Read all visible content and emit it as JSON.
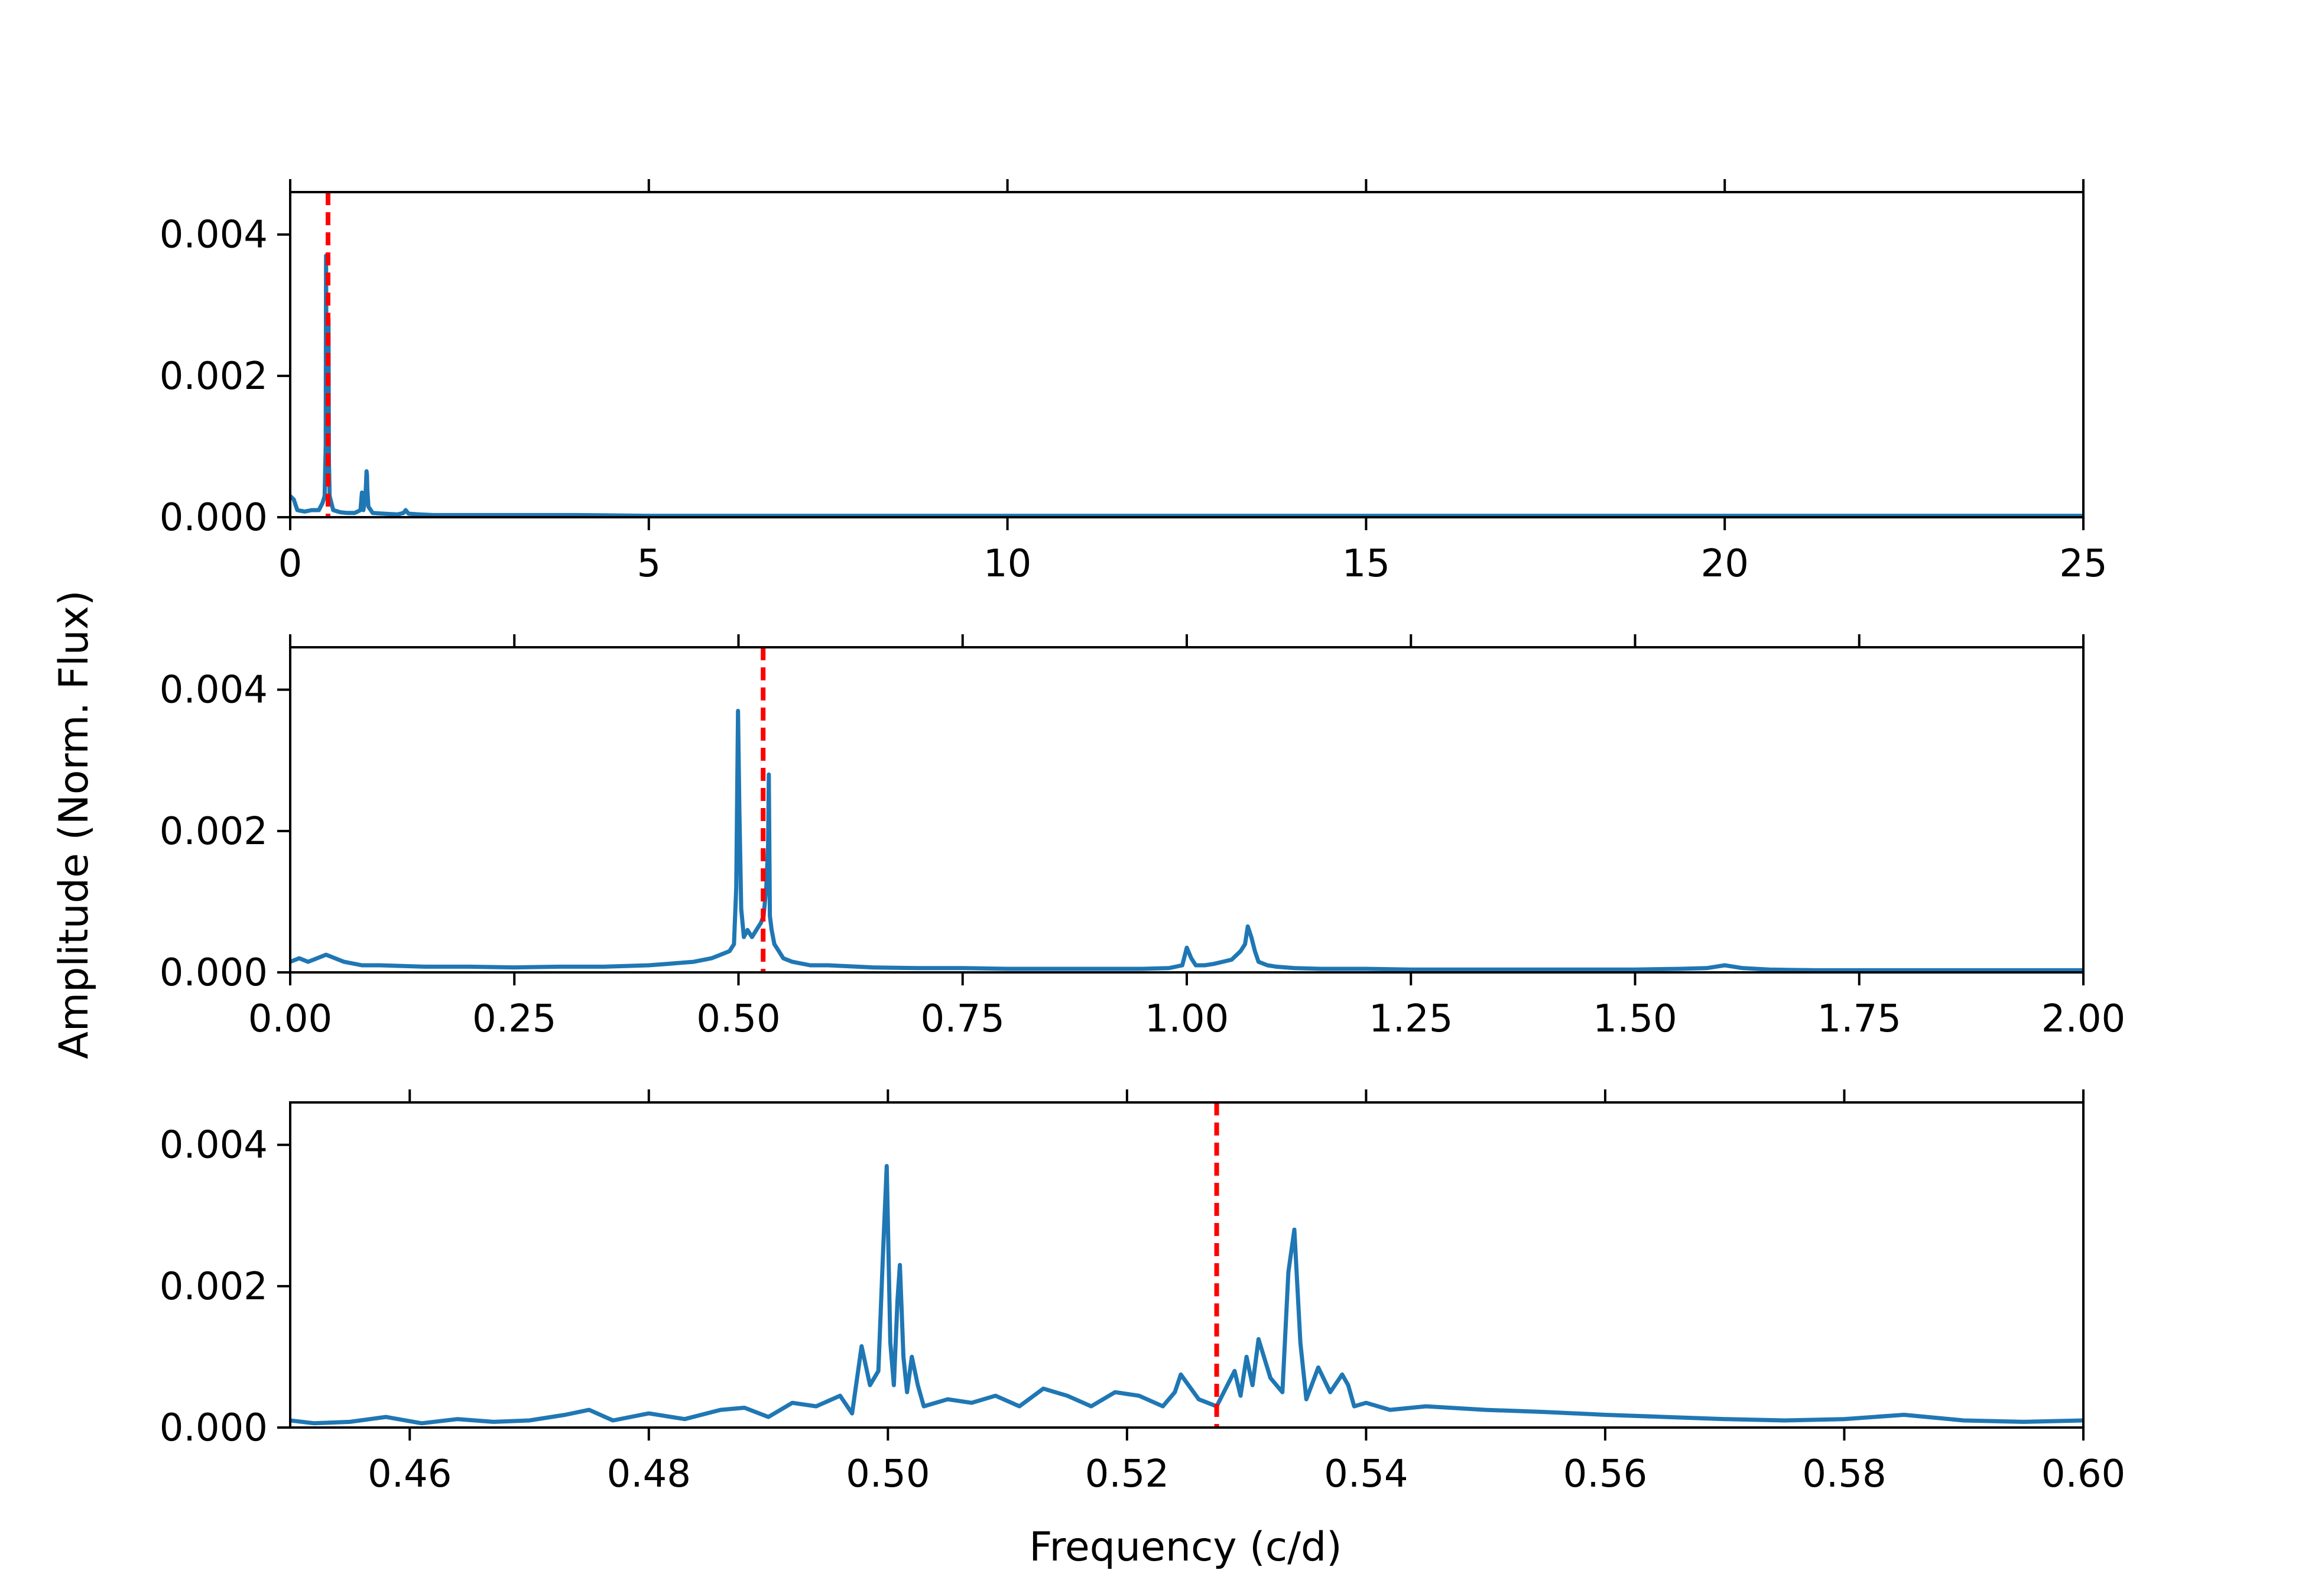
{
  "figure": {
    "ylabel": "Amplitude (Norm. Flux)",
    "xlabel": "Frequency (c/d)"
  },
  "colors": {
    "series": "#1f77b4",
    "marker_line": "#ff0000"
  },
  "chart_data": [
    {
      "type": "line",
      "title": "",
      "xlabel": "",
      "ylabel": "Amplitude (Norm. Flux)",
      "xlim": [
        0,
        25
      ],
      "ylim": [
        0,
        0.0046
      ],
      "x_ticks": [
        0,
        5,
        10,
        15,
        20,
        25
      ],
      "x_tick_labels": [
        "0",
        "5",
        "10",
        "15",
        "20",
        "25"
      ],
      "y_ticks": [
        0,
        0.002,
        0.004
      ],
      "y_tick_labels": [
        "0.000",
        "0.002",
        "0.004"
      ],
      "vline": {
        "x": 0.5275,
        "style": "dashed"
      },
      "series": [
        {
          "x": [
            0,
            0.05,
            0.1,
            0.2,
            0.3,
            0.4,
            0.45,
            0.48,
            0.495,
            0.5,
            0.505,
            0.51,
            0.52,
            0.525,
            0.53,
            0.534,
            0.54,
            0.55,
            0.6,
            0.7,
            0.8,
            0.9,
            0.98,
            1.0,
            1.02,
            1.05,
            1.065,
            1.07,
            1.075,
            1.09,
            1.15,
            1.3,
            1.5,
            1.58,
            1.61,
            1.65,
            1.8,
            2,
            3,
            4,
            5,
            6,
            7,
            8,
            9,
            10,
            11,
            12,
            13,
            14,
            15,
            16,
            17,
            18,
            19,
            20,
            21,
            22,
            23,
            24,
            25
          ],
          "y": [
            0.0003,
            0.00025,
            0.0001,
            8e-05,
            0.0001,
            0.0001,
            0.0002,
            0.0003,
            0.001,
            0.0037,
            0.0023,
            0.0008,
            0.0006,
            0.0007,
            0.0009,
            0.0028,
            0.0008,
            0.0003,
            0.0001,
            7e-05,
            6e-05,
            6e-05,
            0.0001,
            0.00035,
            0.0001,
            0.0003,
            0.00065,
            0.0006,
            0.0004,
            0.00015,
            6e-05,
            5e-05,
            4e-05,
            6e-05,
            0.0001,
            5e-05,
            4e-05,
            3e-05,
            3e-05,
            3e-05,
            2e-05,
            2e-05,
            2e-05,
            2e-05,
            2e-05,
            2e-05,
            2e-05,
            2e-05,
            2e-05,
            2e-05,
            2e-05,
            2e-05,
            2e-05,
            2e-05,
            2e-05,
            2e-05,
            2e-05,
            2e-05,
            2e-05,
            2e-05,
            2e-05
          ]
        }
      ]
    },
    {
      "type": "line",
      "title": "",
      "xlabel": "",
      "ylabel": "Amplitude (Norm. Flux)",
      "xlim": [
        0,
        2
      ],
      "ylim": [
        0,
        0.0046
      ],
      "x_ticks": [
        0,
        0.25,
        0.5,
        0.75,
        1.0,
        1.25,
        1.5,
        1.75,
        2.0
      ],
      "x_tick_labels": [
        "0.00",
        "0.25",
        "0.50",
        "0.75",
        "1.00",
        "1.25",
        "1.50",
        "1.75",
        "2.00"
      ],
      "y_ticks": [
        0,
        0.002,
        0.004
      ],
      "y_tick_labels": [
        "0.000",
        "0.002",
        "0.004"
      ],
      "vline": {
        "x": 0.5275,
        "style": "dashed"
      },
      "series": [
        {
          "x": [
            0,
            0.01,
            0.02,
            0.03,
            0.04,
            0.05,
            0.06,
            0.08,
            0.1,
            0.15,
            0.2,
            0.25,
            0.3,
            0.35,
            0.4,
            0.42,
            0.45,
            0.47,
            0.48,
            0.49,
            0.495,
            0.4975,
            0.4995,
            0.501,
            0.503,
            0.506,
            0.51,
            0.515,
            0.52,
            0.525,
            0.528,
            0.531,
            0.533,
            0.5338,
            0.535,
            0.537,
            0.54,
            0.545,
            0.55,
            0.56,
            0.58,
            0.6,
            0.65,
            0.7,
            0.75,
            0.8,
            0.85,
            0.9,
            0.95,
            0.98,
            0.995,
            1.0,
            1.005,
            1.01,
            1.02,
            1.03,
            1.04,
            1.05,
            1.06,
            1.065,
            1.068,
            1.072,
            1.076,
            1.08,
            1.09,
            1.1,
            1.12,
            1.15,
            1.2,
            1.25,
            1.3,
            1.35,
            1.4,
            1.45,
            1.5,
            1.55,
            1.58,
            1.6,
            1.62,
            1.65,
            1.7,
            1.75,
            1.8,
            1.85,
            1.9,
            1.95,
            2.0
          ],
          "y": [
            0.00015,
            0.0002,
            0.00015,
            0.0002,
            0.00025,
            0.0002,
            0.00015,
            0.0001,
            0.0001,
            8e-05,
            8e-05,
            7e-05,
            8e-05,
            8e-05,
            0.0001,
            0.00012,
            0.00015,
            0.0002,
            0.00025,
            0.0003,
            0.0004,
            0.0012,
            0.0037,
            0.0023,
            0.0009,
            0.0005,
            0.0006,
            0.0005,
            0.0006,
            0.0007,
            0.0008,
            0.0012,
            0.0018,
            0.0028,
            0.0008,
            0.0006,
            0.0004,
            0.0003,
            0.0002,
            0.00015,
            0.0001,
            0.0001,
            7e-05,
            6e-05,
            6e-05,
            5e-05,
            5e-05,
            5e-05,
            5e-05,
            6e-05,
            0.0001,
            0.00035,
            0.0002,
            0.0001,
            0.0001,
            0.00012,
            0.00015,
            0.00018,
            0.0003,
            0.0004,
            0.00065,
            0.0005,
            0.0003,
            0.00015,
            0.0001,
            8e-05,
            6e-05,
            5e-05,
            5e-05,
            4e-05,
            4e-05,
            4e-05,
            4e-05,
            4e-05,
            4e-05,
            5e-05,
            6e-05,
            0.0001,
            6e-05,
            4e-05,
            3e-05,
            3e-05,
            3e-05,
            3e-05,
            3e-05,
            3e-05,
            3e-05
          ]
        }
      ]
    },
    {
      "type": "line",
      "title": "",
      "xlabel": "Frequency (c/d)",
      "ylabel": "Amplitude (Norm. Flux)",
      "xlim": [
        0.45,
        0.6
      ],
      "ylim": [
        0,
        0.0046
      ],
      "x_ticks": [
        0.46,
        0.48,
        0.5,
        0.52,
        0.54,
        0.56,
        0.58,
        0.6
      ],
      "x_tick_labels": [
        "0.46",
        "0.48",
        "0.50",
        "0.52",
        "0.54",
        "0.56",
        "0.58",
        "0.60"
      ],
      "y_ticks": [
        0,
        0.002,
        0.004
      ],
      "y_tick_labels": [
        "0.000",
        "0.002",
        "0.004"
      ],
      "vline": {
        "x": 0.5275,
        "style": "dashed"
      },
      "series": [
        {
          "x": [
            0.45,
            0.452,
            0.455,
            0.458,
            0.461,
            0.464,
            0.467,
            0.47,
            0.473,
            0.475,
            0.477,
            0.48,
            0.483,
            0.486,
            0.488,
            0.49,
            0.492,
            0.494,
            0.496,
            0.497,
            0.4978,
            0.4985,
            0.4992,
            0.4996,
            0.4999,
            0.5002,
            0.5005,
            0.5008,
            0.501,
            0.5013,
            0.5016,
            0.502,
            0.5025,
            0.503,
            0.505,
            0.507,
            0.509,
            0.511,
            0.513,
            0.515,
            0.517,
            0.519,
            0.521,
            0.523,
            0.524,
            0.5245,
            0.526,
            0.5275,
            0.529,
            0.5295,
            0.53,
            0.5305,
            0.531,
            0.532,
            0.533,
            0.5335,
            0.534,
            0.5345,
            0.535,
            0.536,
            0.537,
            0.538,
            0.5385,
            0.539,
            0.54,
            0.542,
            0.545,
            0.55,
            0.555,
            0.56,
            0.565,
            0.57,
            0.575,
            0.58,
            0.585,
            0.59,
            0.595,
            0.6
          ],
          "y": [
            0.0001,
            6e-05,
            8e-05,
            0.00015,
            6e-05,
            0.00012,
            8e-05,
            0.0001,
            0.00018,
            0.00025,
            0.0001,
            0.0002,
            0.00012,
            0.00025,
            0.00028,
            0.00015,
            0.00035,
            0.0003,
            0.00045,
            0.0002,
            0.00115,
            0.0006,
            0.0008,
            0.0025,
            0.0037,
            0.0012,
            0.0006,
            0.0018,
            0.0023,
            0.001,
            0.0005,
            0.001,
            0.0006,
            0.0003,
            0.0004,
            0.00035,
            0.00045,
            0.0003,
            0.00055,
            0.00045,
            0.0003,
            0.0005,
            0.00045,
            0.0003,
            0.0005,
            0.00075,
            0.0004,
            0.0003,
            0.0008,
            0.00045,
            0.001,
            0.0006,
            0.00125,
            0.0007,
            0.0005,
            0.0022,
            0.0028,
            0.0012,
            0.0004,
            0.00085,
            0.0005,
            0.00075,
            0.0006,
            0.0003,
            0.00035,
            0.00025,
            0.0003,
            0.00025,
            0.00022,
            0.00018,
            0.00015,
            0.00012,
            0.0001,
            0.00012,
            0.00018,
            0.0001,
            8e-05,
            0.0001
          ]
        }
      ]
    }
  ]
}
